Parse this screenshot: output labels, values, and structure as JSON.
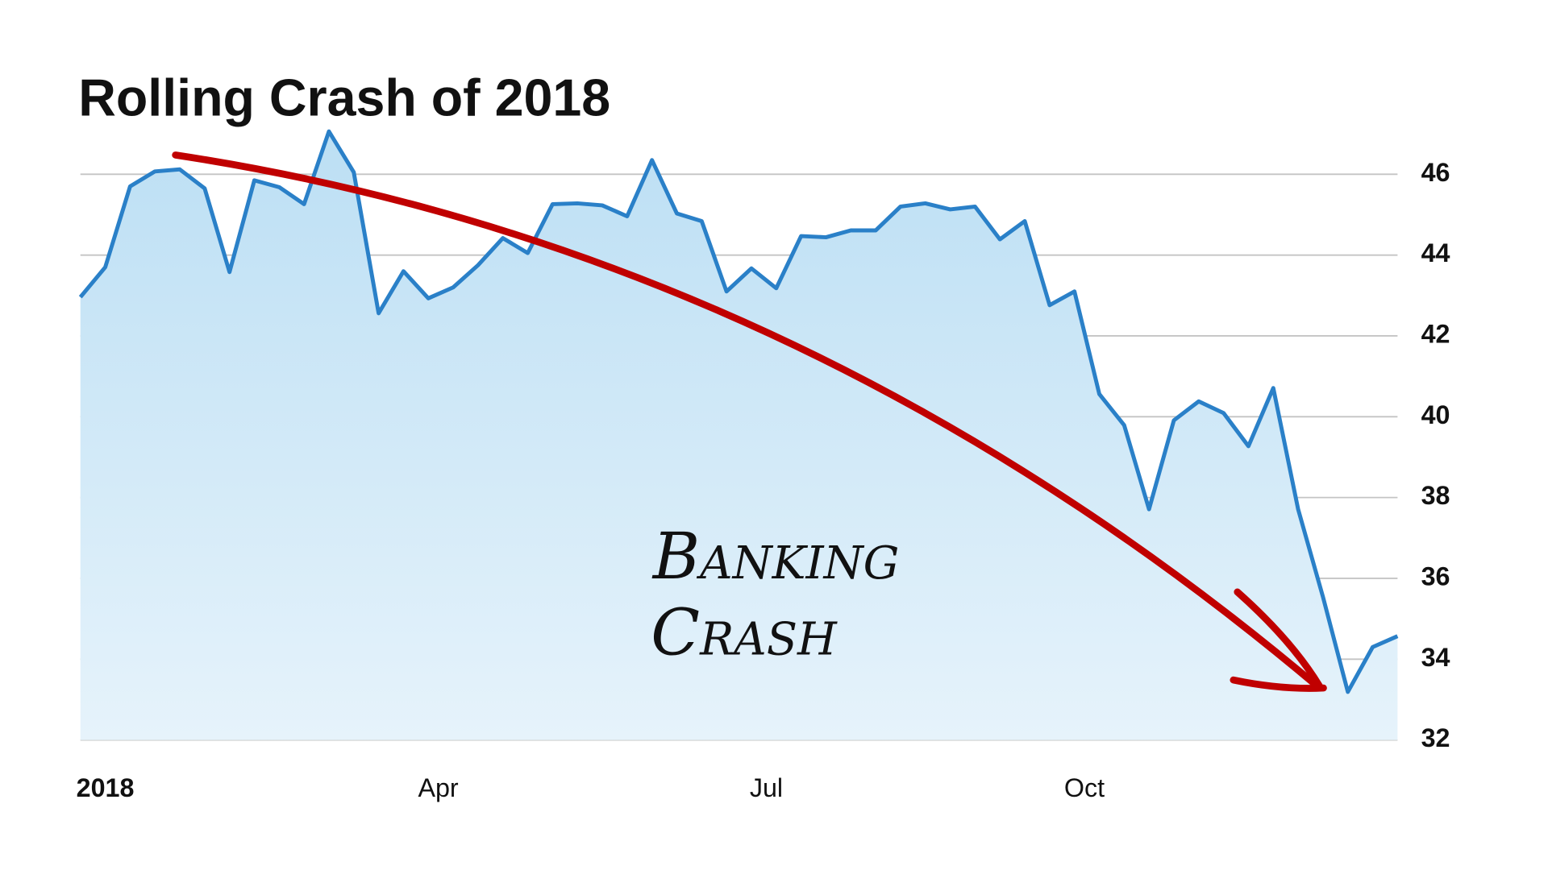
{
  "chart_data": {
    "type": "area",
    "title": "Rolling Crash of 2018",
    "annotation": [
      "Banking",
      "Crash"
    ],
    "x": [
      0,
      1,
      2,
      3,
      4,
      5,
      6,
      7,
      8,
      9,
      10,
      11,
      12,
      13,
      14,
      15,
      16,
      17,
      18,
      19,
      20,
      21,
      22,
      23,
      24,
      25,
      26,
      27,
      28,
      29,
      30,
      31,
      32,
      33,
      34,
      35,
      36,
      37,
      38,
      39,
      40,
      41,
      42,
      43,
      44,
      45,
      46,
      47,
      48,
      49,
      50,
      51,
      52,
      53
    ],
    "values": [
      42.96,
      43.7,
      45.7,
      46.07,
      46.12,
      45.65,
      43.58,
      45.85,
      45.68,
      45.26,
      47.06,
      46.05,
      42.56,
      43.6,
      42.93,
      43.2,
      43.75,
      44.42,
      44.05,
      45.26,
      45.28,
      45.23,
      44.96,
      46.35,
      45.03,
      44.84,
      43.1,
      43.67,
      43.18,
      44.47,
      44.44,
      44.61,
      44.61,
      45.2,
      45.28,
      45.13,
      45.2,
      44.39,
      44.84,
      42.76,
      43.1,
      40.56,
      39.79,
      37.71,
      39.91,
      40.38,
      40.09,
      39.27,
      40.71,
      37.71,
      35.54,
      33.19,
      34.3,
      34.57
    ],
    "color": "#2a80c8",
    "fill": "#c3e2f5",
    "annotation_color": "#c00000",
    "xlim": [
      0,
      53
    ],
    "xticks": [
      {
        "value": 1,
        "label": "2018"
      },
      {
        "value": 14.4,
        "label": "Apr"
      },
      {
        "value": 27.6,
        "label": "Jul"
      },
      {
        "value": 40.4,
        "label": "Oct"
      }
    ],
    "ylim": [
      32,
      46.6
    ],
    "yticks": [
      32,
      34,
      36,
      38,
      40,
      42,
      44,
      46
    ],
    "grid": true,
    "y_axis_side": "right"
  }
}
